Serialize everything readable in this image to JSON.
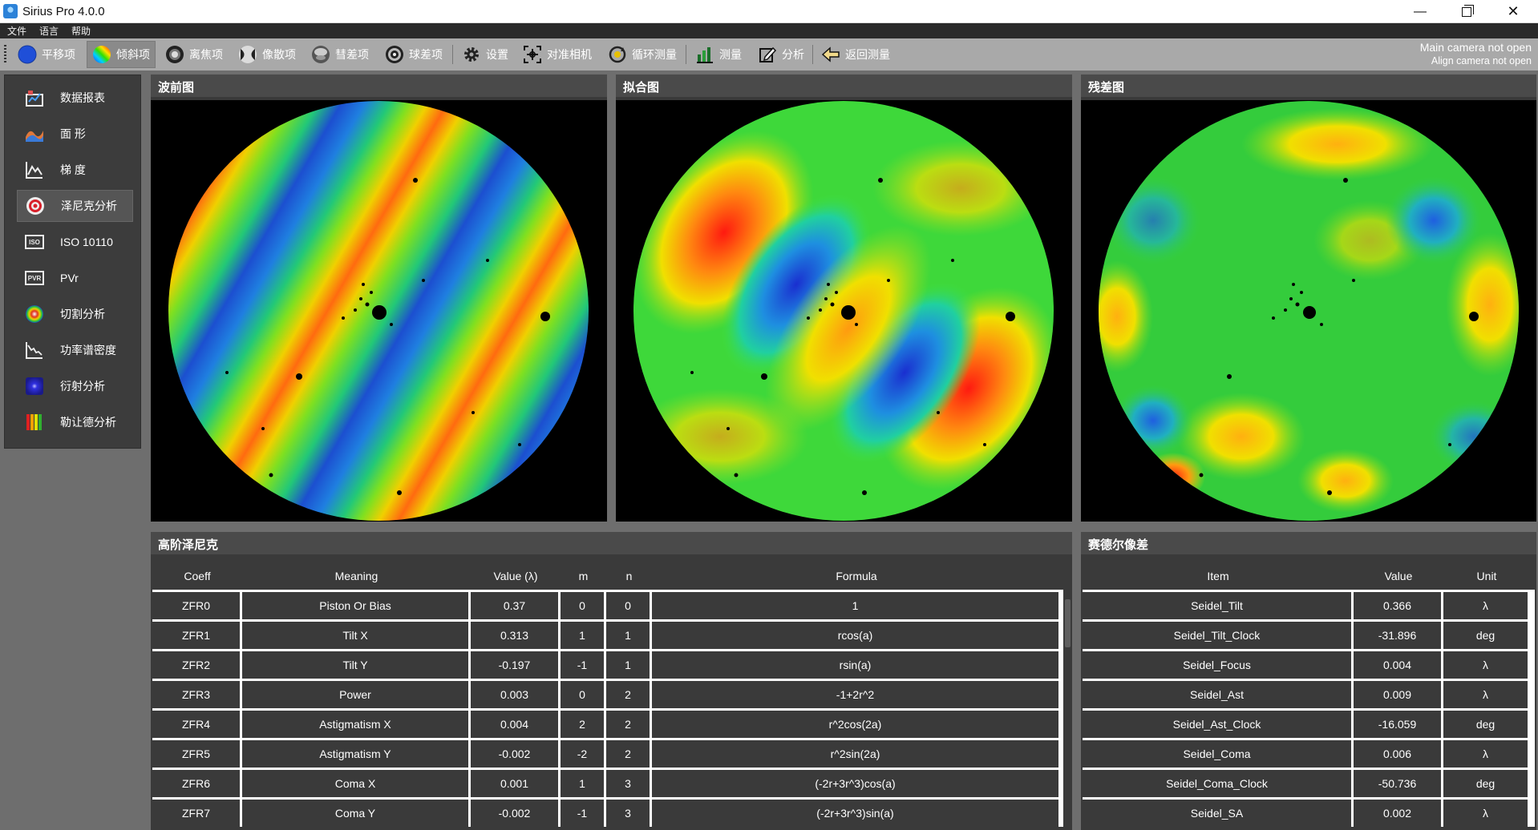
{
  "window": {
    "title": "Sirius Pro 4.0.0",
    "controls": {
      "minimize": "—",
      "close": "✕"
    }
  },
  "menu": [
    "文件",
    "语言",
    "帮助"
  ],
  "toolbar": {
    "buttons": [
      {
        "label": "平移项",
        "icon": "blue-circle-icon"
      },
      {
        "label": "倾斜项",
        "icon": "rainbow-circle-icon"
      },
      {
        "label": "离焦项",
        "icon": "ring-icon"
      },
      {
        "label": "像散项",
        "icon": "astig-icon"
      },
      {
        "label": "彗差项",
        "icon": "coma-icon"
      },
      {
        "label": "球差项",
        "icon": "spherical-icon"
      },
      {
        "label": "设置",
        "icon": "gear-icon"
      },
      {
        "label": "对准相机",
        "icon": "target-icon"
      },
      {
        "label": "循环测量",
        "icon": "cycle-icon"
      },
      {
        "label": "测量",
        "icon": "measure-icon"
      },
      {
        "label": "分析",
        "icon": "edit-icon"
      },
      {
        "label": "返回测量",
        "icon": "back-arrow-icon"
      }
    ],
    "active_index": 1,
    "status": {
      "main_camera": "Main camera not open",
      "align_camera": "Align camera not open"
    }
  },
  "sidebar": {
    "active_index": 3,
    "items": [
      {
        "label": "数据报表",
        "icon": "report-icon"
      },
      {
        "label": "面 形",
        "icon": "surface-icon"
      },
      {
        "label": "梯 度",
        "icon": "gradient-icon"
      },
      {
        "label": "泽尼克分析",
        "icon": "zernike-icon"
      },
      {
        "label": "ISO 10110",
        "icon": "iso-icon",
        "icon_text": "ISO"
      },
      {
        "label": "PVr",
        "icon": "pvr-icon",
        "icon_text": "PVR"
      },
      {
        "label": "切割分析",
        "icon": "cut-icon"
      },
      {
        "label": "功率谱密度",
        "icon": "psd-icon"
      },
      {
        "label": "衍射分析",
        "icon": "diffraction-icon"
      },
      {
        "label": "勒让德分析",
        "icon": "legendre-icon"
      }
    ]
  },
  "panels": {
    "wavefront": {
      "title": "波前图"
    },
    "fit": {
      "title": "拟合图"
    },
    "residual": {
      "title": "残差图"
    }
  },
  "zernike": {
    "title": "高阶泽尼克",
    "columns": [
      "Coeff",
      "Meaning",
      "Value (λ)",
      "m",
      "n",
      "Formula"
    ],
    "rows": [
      [
        "ZFR0",
        "Piston Or Bias",
        "0.37",
        "0",
        "0",
        "1"
      ],
      [
        "ZFR1",
        "Tilt X",
        "0.313",
        "1",
        "1",
        "rcos(a)"
      ],
      [
        "ZFR2",
        "Tilt Y",
        "-0.197",
        "-1",
        "1",
        "rsin(a)"
      ],
      [
        "ZFR3",
        "Power",
        "0.003",
        "0",
        "2",
        "-1+2r^2"
      ],
      [
        "ZFR4",
        "Astigmatism X",
        "0.004",
        "2",
        "2",
        "r^2cos(2a)"
      ],
      [
        "ZFR5",
        "Astigmatism Y",
        "-0.002",
        "-2",
        "2",
        "r^2sin(2a)"
      ],
      [
        "ZFR6",
        "Coma X",
        "0.001",
        "1",
        "3",
        "(-2r+3r^3)cos(a)"
      ],
      [
        "ZFR7",
        "Coma Y",
        "-0.002",
        "-1",
        "3",
        "(-2r+3r^3)sin(a)"
      ]
    ]
  },
  "seidel": {
    "title": "赛德尔像差",
    "columns": [
      "Item",
      "Value",
      "Unit"
    ],
    "rows": [
      [
        "Seidel_Tilt",
        "0.366",
        "λ"
      ],
      [
        "Seidel_Tilt_Clock",
        "-31.896",
        "deg"
      ],
      [
        "Seidel_Focus",
        "0.004",
        "λ"
      ],
      [
        "Seidel_Ast",
        "0.009",
        "λ"
      ],
      [
        "Seidel_Ast_Clock",
        "-16.059",
        "deg"
      ],
      [
        "Seidel_Coma",
        "0.006",
        "λ"
      ],
      [
        "Seidel_Coma_Clock",
        "-50.736",
        "deg"
      ],
      [
        "Seidel_SA",
        "0.002",
        "λ"
      ]
    ]
  },
  "colors": {
    "background": "#6e6e6e",
    "panel": "#3a3a3a",
    "toolbar": "#a9a9a9",
    "sidebar": "#3c3c3c"
  }
}
